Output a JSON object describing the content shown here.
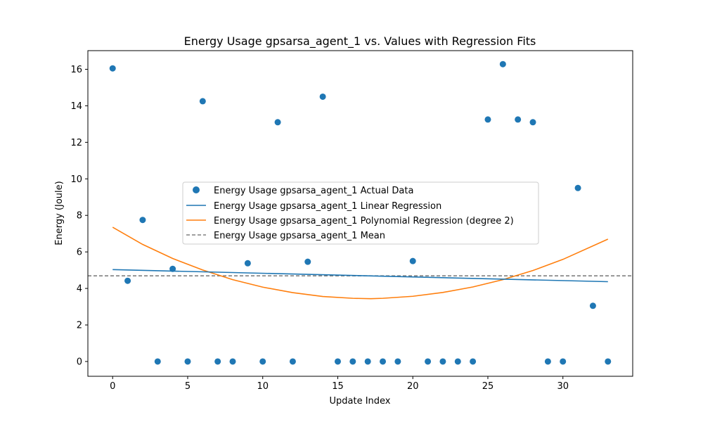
{
  "chart_data": {
    "type": "scatter",
    "title": "Energy Usage gpsarsa_agent_1 vs. Values with Regression Fits",
    "xlabel": "Update Index",
    "ylabel": "Energy (Joule)",
    "xlim": [
      -1.65,
      34.65
    ],
    "ylim": [
      -0.81,
      17.02
    ],
    "xticks": [
      0,
      5,
      10,
      15,
      20,
      25,
      30
    ],
    "yticks": [
      0,
      2,
      4,
      6,
      8,
      10,
      12,
      14,
      16
    ],
    "grid": false,
    "legend_position": "center-left",
    "actual": {
      "name": "Energy Usage gpsarsa_agent_1 Actual Data",
      "color": "#1f77b4",
      "x": [
        0,
        1,
        2,
        3,
        4,
        5,
        6,
        7,
        8,
        9,
        10,
        11,
        12,
        13,
        14,
        15,
        16,
        17,
        18,
        19,
        20,
        21,
        22,
        23,
        24,
        25,
        26,
        27,
        28,
        29,
        30,
        31,
        32,
        33
      ],
      "y": [
        16.05,
        4.42,
        7.75,
        0.0,
        5.07,
        0.0,
        14.25,
        0.0,
        0.0,
        5.38,
        0.0,
        13.1,
        0.0,
        5.46,
        14.5,
        0.0,
        0.0,
        0.0,
        0.0,
        0.0,
        5.5,
        0.0,
        0.0,
        0.0,
        0.0,
        13.25,
        16.28,
        13.25,
        13.1,
        0.0,
        0.0,
        9.5,
        3.05,
        0.0
      ]
    },
    "linear": {
      "name": "Energy Usage gpsarsa_agent_1 Linear Regression",
      "color": "#1f77b4",
      "x": [
        0,
        33
      ],
      "y": [
        5.03,
        4.37
      ]
    },
    "poly": {
      "name": "Energy Usage gpsarsa_agent_1 Polynomial Regression (degree 2)",
      "color": "#ff7f0e",
      "x": [
        0,
        2,
        4,
        6,
        8,
        10,
        12,
        14,
        16,
        17.2,
        18,
        20,
        22,
        24,
        26,
        28,
        30,
        33
      ],
      "y": [
        7.35,
        6.41,
        5.64,
        5.01,
        4.48,
        4.07,
        3.77,
        3.56,
        3.46,
        3.44,
        3.46,
        3.57,
        3.78,
        4.08,
        4.48,
        4.98,
        5.59,
        6.7
      ]
    },
    "mean": {
      "name": "Energy Usage gpsarsa_agent_1 Mean",
      "color": "#808080",
      "value": 4.69
    }
  }
}
